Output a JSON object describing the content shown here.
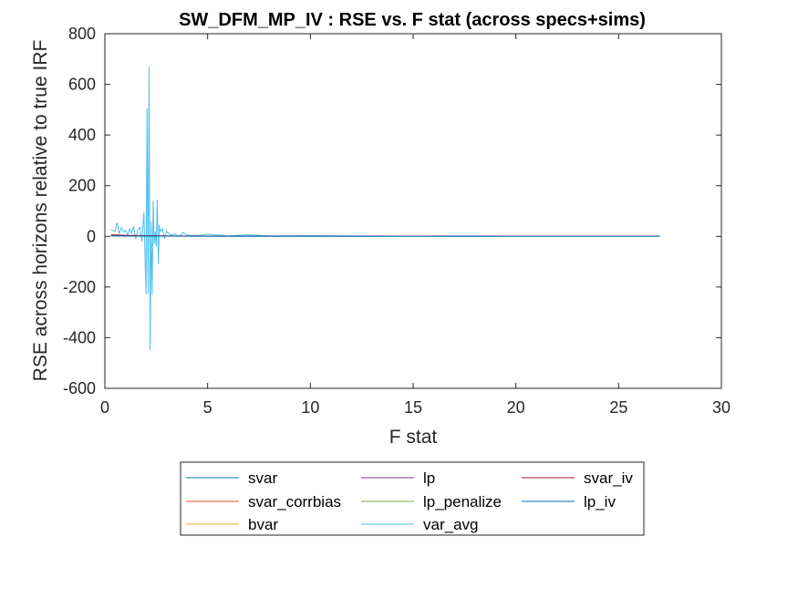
{
  "chart_data": {
    "type": "line",
    "title": "SW_DFM_MP_IV : RSE vs. F stat (across specs+sims)",
    "xlabel": "F stat",
    "ylabel": "RSE across horizons relative to true IRF",
    "xlim": [
      0,
      30
    ],
    "ylim": [
      -600,
      800
    ],
    "xticks": [
      0,
      5,
      10,
      15,
      20,
      25,
      30
    ],
    "yticks": [
      -600,
      -400,
      -200,
      0,
      200,
      400,
      600,
      800
    ],
    "grid": false,
    "legend_position": "bottom-outside",
    "legend_columns": 3,
    "series": [
      {
        "name": "svar",
        "color": "#0072BD",
        "x": [
          0.3,
          1.0,
          2.0,
          3.0,
          5.0,
          10.0,
          15.0,
          20.0,
          25.0,
          27.0
        ],
        "y": [
          3,
          2,
          2,
          1,
          1,
          1,
          1,
          1,
          1,
          1
        ]
      },
      {
        "name": "svar_corrbias",
        "color": "#D95319",
        "x": [
          0.3,
          1.0,
          2.0,
          3.0,
          5.0,
          10.0,
          15.0,
          20.0,
          25.0,
          27.0
        ],
        "y": [
          5,
          3,
          2,
          1,
          1,
          1,
          1,
          1,
          1,
          1
        ]
      },
      {
        "name": "bvar",
        "color": "#EDB120",
        "x": [
          0.3,
          1.0,
          2.0,
          3.0,
          5.0,
          10.0,
          15.0,
          20.0,
          25.0,
          27.0
        ],
        "y": [
          2,
          2,
          1,
          1,
          1,
          1,
          1,
          1,
          1,
          1
        ]
      },
      {
        "name": "lp",
        "color": "#7E2F8E",
        "x": [
          0.3,
          1.0,
          2.0,
          3.0,
          5.0,
          10.0,
          15.0,
          20.0,
          25.0,
          27.0
        ],
        "y": [
          4,
          3,
          2,
          1,
          1,
          1,
          1,
          1,
          1,
          1
        ]
      },
      {
        "name": "lp_penalize",
        "color": "#77AC30",
        "x": [
          0.3,
          1.0,
          2.0,
          3.0,
          5.0,
          10.0,
          15.0,
          20.0,
          25.0,
          27.0
        ],
        "y": [
          3,
          2,
          2,
          1,
          1,
          1,
          1,
          1,
          1,
          1
        ]
      },
      {
        "name": "var_avg",
        "color": "#4DBEEE",
        "x": [
          0.3,
          0.5,
          0.6,
          0.7,
          0.8,
          0.9,
          1.0,
          1.1,
          1.2,
          1.3,
          1.4,
          1.5,
          1.6,
          1.7,
          1.8,
          1.9,
          2.0,
          2.05,
          2.1,
          2.15,
          2.2,
          2.25,
          2.3,
          2.35,
          2.4,
          2.45,
          2.5,
          2.55,
          2.6,
          2.65,
          2.7,
          2.8,
          2.9,
          3.0,
          3.2,
          3.4,
          3.6,
          3.8,
          4.0,
          4.5,
          5.0,
          6.0,
          7.0,
          8.0,
          10.0,
          12.0,
          15.0,
          18.0,
          20.0,
          22.0,
          25.0,
          27.0
        ],
        "y": [
          25,
          20,
          55,
          10,
          35,
          18,
          25,
          5,
          30,
          12,
          40,
          -10,
          25,
          35,
          -20,
          95,
          -230,
          505,
          -225,
          670,
          -450,
          60,
          -230,
          140,
          -30,
          20,
          -40,
          145,
          -110,
          45,
          20,
          30,
          -10,
          20,
          5,
          10,
          0,
          15,
          5,
          3,
          8,
          2,
          6,
          2,
          3,
          2,
          1,
          2,
          1,
          1,
          1,
          1
        ]
      },
      {
        "name": "svar_iv",
        "color": "#A2142F",
        "x": [
          0.3,
          1.0,
          2.0,
          3.0,
          5.0,
          10.0,
          15.0,
          20.0,
          25.0,
          27.0
        ],
        "y": [
          6,
          4,
          3,
          2,
          1,
          1,
          1,
          1,
          1,
          1
        ]
      },
      {
        "name": "lp_iv",
        "color": "#0072BD",
        "x": [
          0.3,
          1.0,
          2.0,
          3.0,
          5.0,
          10.0,
          15.0,
          20.0,
          25.0,
          27.0
        ],
        "y": [
          2,
          1,
          1,
          1,
          0,
          0,
          0,
          0,
          0,
          0
        ]
      }
    ],
    "legend_order": [
      "svar",
      "lp",
      "svar_iv",
      "svar_corrbias",
      "lp_penalize",
      "lp_iv",
      "bvar",
      "var_avg"
    ]
  }
}
